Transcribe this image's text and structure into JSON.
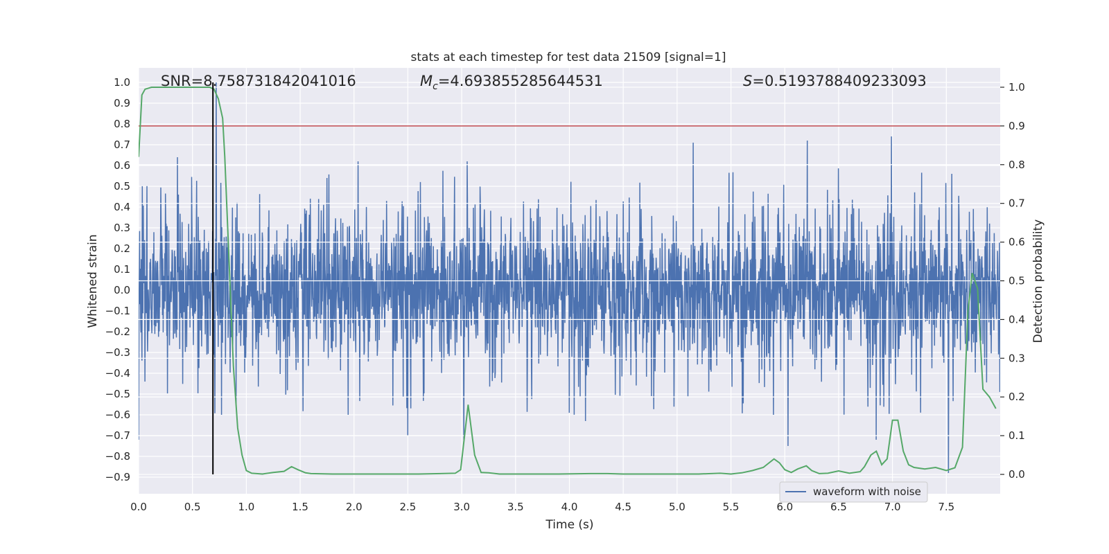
{
  "chart_data": {
    "type": "line",
    "title": "stats at each timestep for test data 21509 [signal=1]",
    "xlabel": "Time (s)",
    "ylabel_left": "Whitened strain",
    "ylabel_right": "Detection probability",
    "xlim": [
      0.0,
      8.0
    ],
    "ylim_left": [
      -0.98,
      1.07
    ],
    "ylim_right": [
      -0.05,
      1.05
    ],
    "x_ticks": [
      0.0,
      0.5,
      1.0,
      1.5,
      2.0,
      2.5,
      3.0,
      3.5,
      4.0,
      4.5,
      5.0,
      5.5,
      6.0,
      6.5,
      7.0,
      7.5
    ],
    "x_tick_labels": [
      "0.0",
      "0.5",
      "1.0",
      "1.5",
      "2.0",
      "2.5",
      "3.0",
      "3.5",
      "4.0",
      "4.5",
      "5.0",
      "5.5",
      "6.0",
      "6.5",
      "7.0",
      "7.5"
    ],
    "y_left_ticks": [
      1.0,
      0.9,
      0.8,
      0.7,
      0.6,
      0.5,
      0.4,
      0.3,
      0.2,
      0.1,
      0.0,
      -0.1,
      -0.2,
      -0.3,
      -0.4,
      -0.5,
      -0.6,
      -0.7,
      -0.8,
      -0.9
    ],
    "y_left_tick_labels": [
      "1.0",
      "0.9",
      "0.8",
      "0.7",
      "0.6",
      "0.5",
      "0.4",
      "0.3",
      "0.2",
      "0.1",
      "0.0",
      "−0.1",
      "−0.2",
      "−0.3",
      "−0.4",
      "−0.5",
      "−0.6",
      "−0.7",
      "−0.8",
      "−0.9"
    ],
    "y_right_ticks": [
      1.0,
      0.9,
      0.8,
      0.7,
      0.6,
      0.5,
      0.4,
      0.3,
      0.2,
      0.1,
      0.0
    ],
    "y_right_tick_labels": [
      "1.0",
      "0.9",
      "0.8",
      "0.7",
      "0.6",
      "0.5",
      "0.4",
      "0.3",
      "0.2",
      "0.1",
      "0.0"
    ],
    "grid": true,
    "legend_placement": "lower-right",
    "annotations": {
      "snr": "SNR=8.758731842041016",
      "mc_symbol": "M",
      "mc_sub": "c",
      "mc_value": "=4.693855285644531",
      "s_symbol": "S",
      "s_value": "=0.5193788409233093"
    },
    "threshold": {
      "value_right": 0.9,
      "color": "#c44e52"
    },
    "marker_time": 0.69,
    "series": [
      {
        "name": "waveform with noise",
        "axis": "left",
        "color": "#4c72b0",
        "kind": "noise",
        "seed": 21509,
        "n_samples": 2600,
        "sigma": 0.17,
        "spike_prob": 0.04,
        "peaks": [
          {
            "x": 0.0,
            "y": -0.72
          },
          {
            "x": 0.36,
            "y": 0.64
          },
          {
            "x": 0.72,
            "y": 1.0
          },
          {
            "x": 0.77,
            "y": -0.6
          },
          {
            "x": 2.5,
            "y": -0.7
          },
          {
            "x": 3.02,
            "y": -0.72
          },
          {
            "x": 3.05,
            "y": 0.62
          },
          {
            "x": 4.15,
            "y": -0.63
          },
          {
            "x": 5.15,
            "y": 0.71
          },
          {
            "x": 6.03,
            "y": -0.75
          },
          {
            "x": 6.21,
            "y": 0.72
          },
          {
            "x": 6.85,
            "y": -0.72
          },
          {
            "x": 6.99,
            "y": 0.74
          },
          {
            "x": 7.52,
            "y": -0.88
          }
        ]
      },
      {
        "axis": "right",
        "color": "#55a868",
        "kind": "line",
        "x": [
          0.0,
          0.03,
          0.06,
          0.12,
          0.18,
          0.3,
          0.45,
          0.6,
          0.66,
          0.7,
          0.74,
          0.78,
          0.8,
          0.84,
          0.88,
          0.92,
          0.96,
          1.0,
          1.05,
          1.15,
          1.25,
          1.35,
          1.42,
          1.48,
          1.55,
          1.6,
          1.8,
          2.0,
          2.3,
          2.6,
          2.94,
          2.99,
          3.06,
          3.12,
          3.18,
          3.25,
          3.35,
          3.6,
          3.9,
          4.2,
          4.35,
          4.5,
          4.7,
          4.9,
          5.2,
          5.4,
          5.5,
          5.6,
          5.7,
          5.8,
          5.9,
          5.95,
          6.0,
          6.06,
          6.12,
          6.2,
          6.25,
          6.32,
          6.4,
          6.5,
          6.6,
          6.7,
          6.74,
          6.8,
          6.85,
          6.9,
          6.95,
          7.0,
          7.05,
          7.1,
          7.15,
          7.2,
          7.3,
          7.4,
          7.5,
          7.58,
          7.65,
          7.7,
          7.74,
          7.79,
          7.84,
          7.9,
          7.96
        ],
        "y": [
          0.82,
          0.98,
          0.995,
          1.0,
          1.0,
          1.0,
          1.0,
          1.0,
          1.0,
          0.995,
          0.97,
          0.92,
          0.82,
          0.55,
          0.28,
          0.12,
          0.05,
          0.01,
          0.003,
          0.001,
          0.005,
          0.008,
          0.02,
          0.012,
          0.004,
          0.002,
          0.001,
          0.001,
          0.001,
          0.001,
          0.003,
          0.012,
          0.18,
          0.05,
          0.005,
          0.004,
          0.001,
          0.001,
          0.001,
          0.002,
          0.002,
          0.001,
          0.001,
          0.001,
          0.001,
          0.003,
          0.001,
          0.004,
          0.01,
          0.018,
          0.04,
          0.03,
          0.012,
          0.005,
          0.014,
          0.022,
          0.01,
          0.002,
          0.003,
          0.009,
          0.003,
          0.007,
          0.02,
          0.05,
          0.06,
          0.025,
          0.04,
          0.14,
          0.14,
          0.06,
          0.025,
          0.018,
          0.014,
          0.018,
          0.01,
          0.017,
          0.07,
          0.42,
          0.52,
          0.48,
          0.22,
          0.2,
          0.17
        ]
      }
    ]
  },
  "legend": {
    "label": "waveform with noise"
  }
}
